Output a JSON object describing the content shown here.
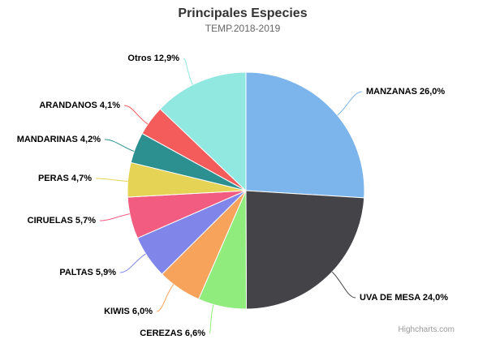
{
  "chart": {
    "title": "Principales Especies",
    "subtitle": "TEMP.2018-2019",
    "credits": "Highcharts.com"
  },
  "chart_data": {
    "type": "pie",
    "title": "Principales Especies",
    "subtitle": "TEMP.2018-2019",
    "legend": "none",
    "start_angle_deg": 0,
    "direction": "clockwise",
    "value_unit": "%",
    "decimal_separator": ",",
    "slices": [
      {
        "name": "MANZANAS",
        "value": 26.0,
        "label": "MANZANAS 26,0%",
        "color": "#7cb5ec"
      },
      {
        "name": "UVA DE MESA",
        "value": 24.0,
        "label": "UVA DE MESA 24,0%",
        "color": "#434348"
      },
      {
        "name": "CEREZAS",
        "value": 6.6,
        "label": "CEREZAS 6,6%",
        "color": "#90ed7d"
      },
      {
        "name": "KIWIS",
        "value": 6.0,
        "label": "KIWIS 6,0%",
        "color": "#f7a35c"
      },
      {
        "name": "PALTAS",
        "value": 5.9,
        "label": "PALTAS 5,9%",
        "color": "#8085e9"
      },
      {
        "name": "CIRUELAS",
        "value": 5.7,
        "label": "CIRUELAS 5,7%",
        "color": "#f15c80"
      },
      {
        "name": "PERAS",
        "value": 4.7,
        "label": "PERAS 4,7%",
        "color": "#e4d354"
      },
      {
        "name": "MANDARINAS",
        "value": 4.2,
        "label": "MANDARINAS 4,2%",
        "color": "#2b908f"
      },
      {
        "name": "ARANDANOS",
        "value": 4.1,
        "label": "ARANDANOS 4,1%",
        "color": "#f45b5b"
      },
      {
        "name": "Otros",
        "value": 12.9,
        "label": "Otros 12,9%",
        "color": "#91e8e1"
      }
    ]
  }
}
